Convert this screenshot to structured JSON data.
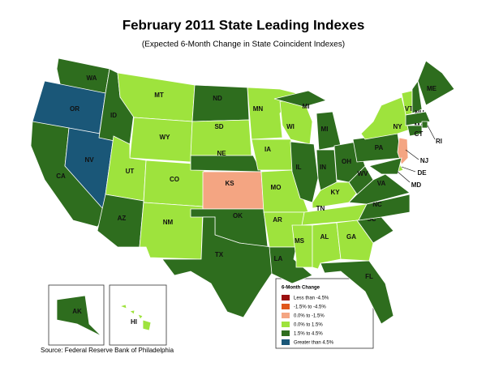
{
  "title": "February 2011 State Leading Indexes",
  "subtitle": "(Expected 6-Month Change in State Coincident Indexes)",
  "source": "Source: Federal Reserve Bank of Philadelphia",
  "legend": {
    "title": "6-Month Change",
    "items": [
      {
        "label": "Less than -4.5%",
        "color": "#9b1010"
      },
      {
        "label": "-1.5% to -4.5%",
        "color": "#e0561b"
      },
      {
        "label": "0.0% to -1.5%",
        "color": "#f4a582"
      },
      {
        "label": "0.0% to  1.5%",
        "color": "#9ee33d"
      },
      {
        "label": "1.5% to  4.5%",
        "color": "#2e6d1e"
      },
      {
        "label": "Greater than 4.5%",
        "color": "#1a5778"
      }
    ]
  },
  "states": [
    {
      "label": "WA",
      "color": "#2e6d1e"
    },
    {
      "label": "OR",
      "color": "#1a5778"
    },
    {
      "label": "CA",
      "color": "#2e6d1e"
    },
    {
      "label": "NV",
      "color": "#1a5778"
    },
    {
      "label": "ID",
      "color": "#2e6d1e"
    },
    {
      "label": "MT",
      "color": "#9ee33d"
    },
    {
      "label": "WY",
      "color": "#9ee33d"
    },
    {
      "label": "UT",
      "color": "#9ee33d"
    },
    {
      "label": "CO",
      "color": "#9ee33d"
    },
    {
      "label": "AZ",
      "color": "#2e6d1e"
    },
    {
      "label": "NM",
      "color": "#9ee33d"
    },
    {
      "label": "ND",
      "color": "#2e6d1e"
    },
    {
      "label": "SD",
      "color": "#9ee33d"
    },
    {
      "label": "NE",
      "color": "#2e6d1e"
    },
    {
      "label": "KS",
      "color": "#f4a582"
    },
    {
      "label": "OK",
      "color": "#2e6d1e"
    },
    {
      "label": "TX",
      "color": "#2e6d1e"
    },
    {
      "label": "MN",
      "color": "#9ee33d"
    },
    {
      "label": "IA",
      "color": "#9ee33d"
    },
    {
      "label": "MO",
      "color": "#9ee33d"
    },
    {
      "label": "AR",
      "color": "#9ee33d"
    },
    {
      "label": "LA",
      "color": "#2e6d1e"
    },
    {
      "label": "WI",
      "color": "#9ee33d"
    },
    {
      "label": "IL",
      "color": "#2e6d1e"
    },
    {
      "label": "MI",
      "color": "#2e6d1e"
    },
    {
      "label": "MI",
      "color": "#2e6d1e"
    },
    {
      "label": "IN",
      "color": "#2e6d1e"
    },
    {
      "label": "OH",
      "color": "#2e6d1e"
    },
    {
      "label": "KY",
      "color": "#9ee33d"
    },
    {
      "label": "TN",
      "color": "#9ee33d"
    },
    {
      "label": "MS",
      "color": "#9ee33d"
    },
    {
      "label": "AL",
      "color": "#9ee33d"
    },
    {
      "label": "GA",
      "color": "#9ee33d"
    },
    {
      "label": "FL",
      "color": "#2e6d1e"
    },
    {
      "label": "SC",
      "color": "#2e6d1e"
    },
    {
      "label": "NC",
      "color": "#2e6d1e"
    },
    {
      "label": "VA",
      "color": "#2e6d1e"
    },
    {
      "label": "WV",
      "color": "#2e6d1e"
    },
    {
      "label": "PA",
      "color": "#2e6d1e"
    },
    {
      "label": "NY",
      "color": "#9ee33d"
    },
    {
      "label": "VT",
      "color": "#9ee33d"
    },
    {
      "label": "NH",
      "color": "#2e6d1e"
    },
    {
      "label": "ME",
      "color": "#2e6d1e"
    },
    {
      "label": "MA",
      "color": "#2e6d1e"
    },
    {
      "label": "RI",
      "color": "#2e6d1e"
    },
    {
      "label": "CT",
      "color": "#2e6d1e"
    },
    {
      "label": "NJ",
      "color": "#f4a582"
    },
    {
      "label": "DE",
      "color": "#9ee33d"
    },
    {
      "label": "MD",
      "color": "#2e6d1e"
    },
    {
      "label": "AK",
      "color": "#2e6d1e"
    },
    {
      "label": "HI",
      "color": "#9ee33d"
    }
  ]
}
